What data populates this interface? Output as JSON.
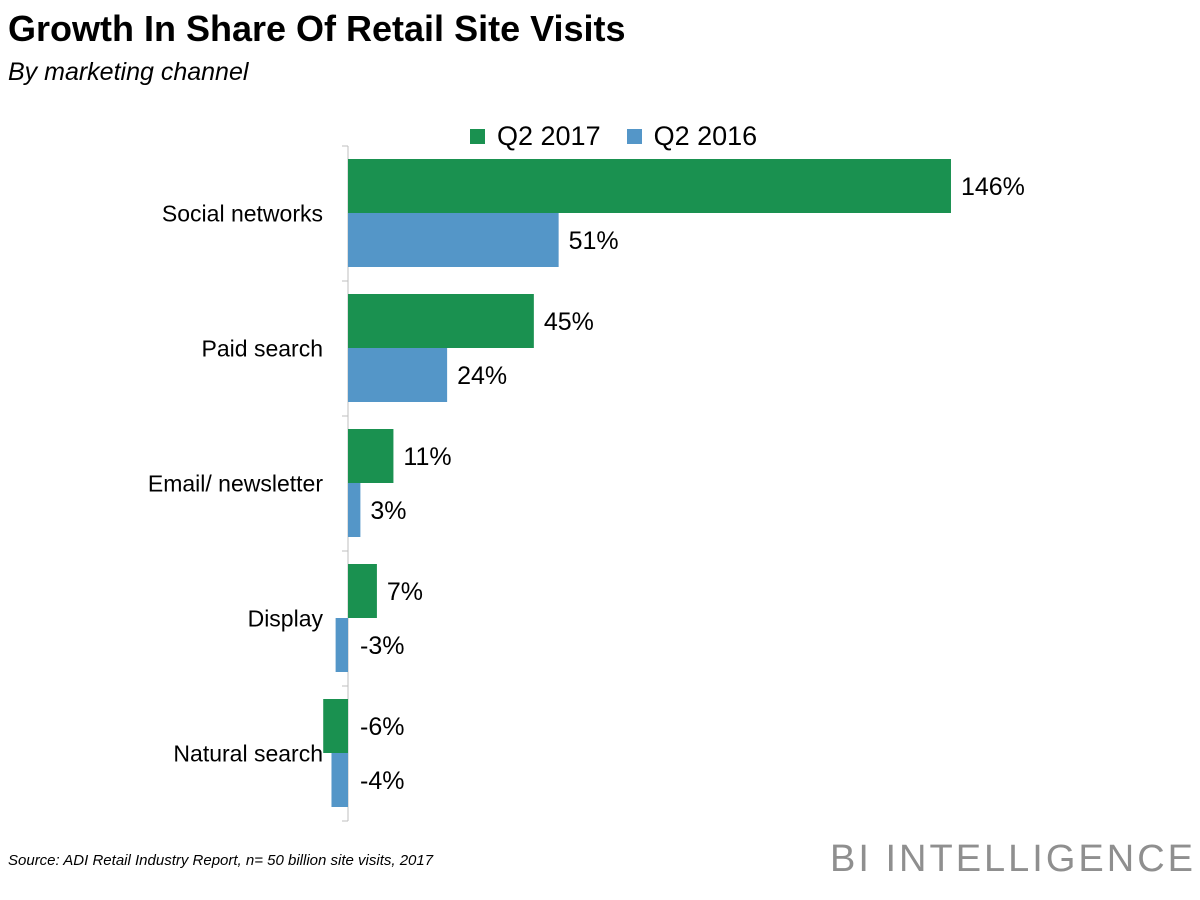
{
  "title": "Growth In Share Of Retail Site Visits",
  "subtitle": "By marketing channel",
  "source": "Source: ADI Retail Industry Report, n= 50 billion site visits, 2017",
  "brand": "BI INTELLIGENCE",
  "colors": {
    "q2_2017": "#1a9150",
    "q2_2016": "#5496c8",
    "axis": "#bfbfbf"
  },
  "chart_data": {
    "type": "bar",
    "orientation": "horizontal",
    "title": "Growth In Share Of Retail Site Visits",
    "subtitle": "By marketing channel",
    "categories": [
      "Social networks",
      "Paid search",
      "Email/ newsletter",
      "Display",
      "Natural search"
    ],
    "series": [
      {
        "name": "Q2 2017",
        "values": [
          146,
          45,
          11,
          7,
          -6
        ],
        "labels": [
          "146%",
          "45%",
          "11%",
          "7%",
          "-6%"
        ]
      },
      {
        "name": "Q2 2016",
        "values": [
          51,
          24,
          3,
          -3,
          -4
        ],
        "labels": [
          "51%",
          "24%",
          "3%",
          "-3%",
          "-4%"
        ]
      }
    ],
    "unit": "%",
    "legend_position": "top",
    "grid": false,
    "xlim": [
      -10,
      146
    ]
  }
}
